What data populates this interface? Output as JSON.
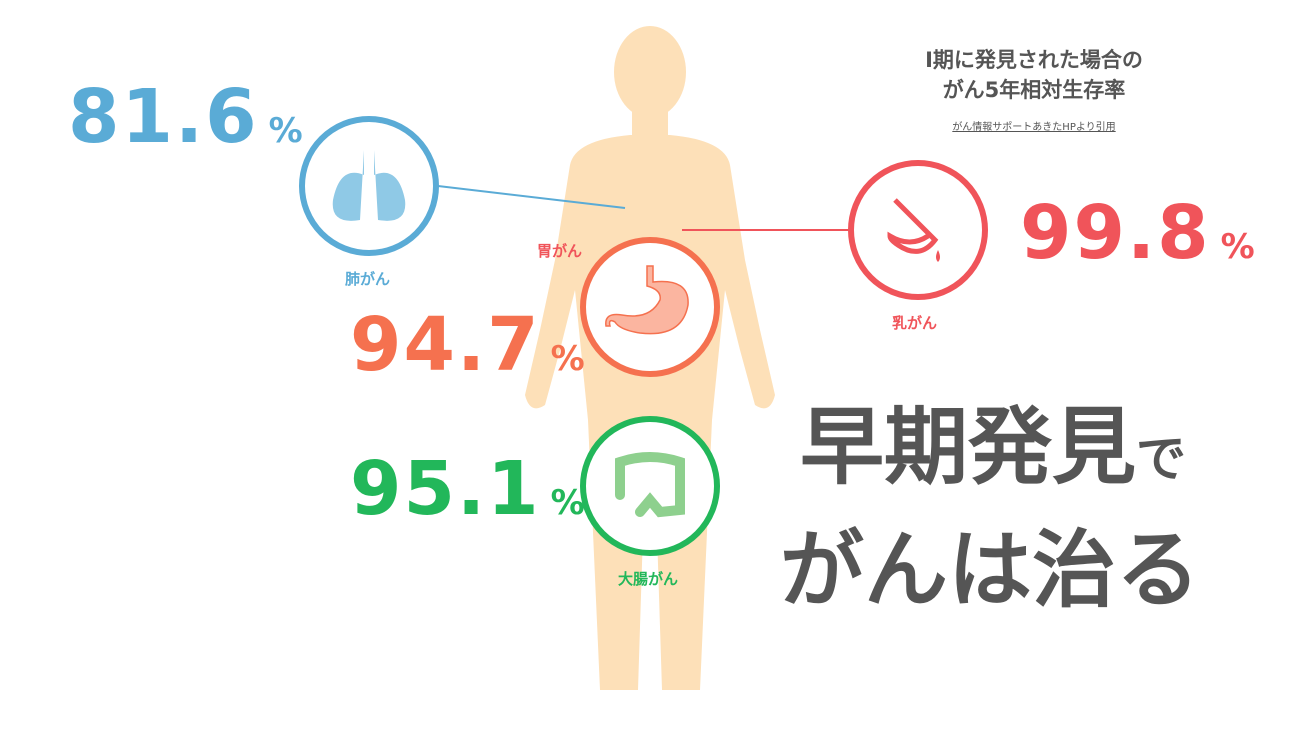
{
  "title": {
    "line1": "I期に発見された場合の",
    "line2": "がん5年相対生存率",
    "source": "がん情報サポートあきたHPより引用"
  },
  "stats": [
    {
      "organ": "肺がん",
      "value": "81.6",
      "unit": "%",
      "color": "#5aabd6",
      "icon": "lungs-icon"
    },
    {
      "organ": "胃がん",
      "value": "94.7",
      "unit": "%",
      "color": "#f5714f",
      "icon": "stomach-icon"
    },
    {
      "organ": "乳がん",
      "value": "99.8",
      "unit": "%",
      "color": "#f0545a",
      "icon": "breast-icon"
    },
    {
      "organ": "大腸がん",
      "value": "95.1",
      "unit": "%",
      "color": "#22b75a",
      "icon": "colon-icon"
    }
  ],
  "headline": {
    "line1_main": "早期発見",
    "line1_suffix": "で",
    "line2": "がんは治る"
  },
  "colors": {
    "body": "#fde0b8",
    "text": "#555555"
  }
}
